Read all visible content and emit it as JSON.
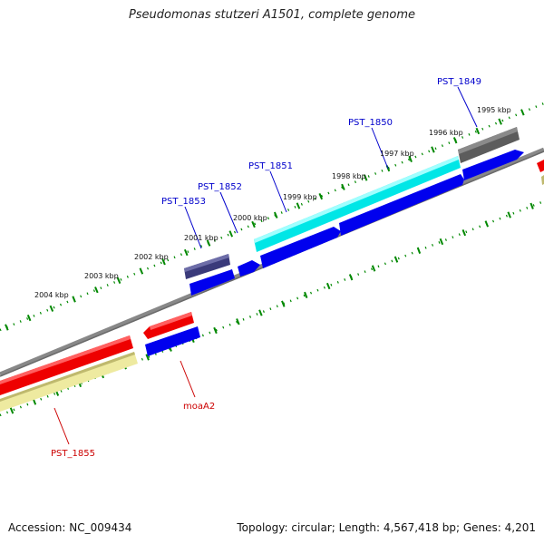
{
  "title": "Pseudomonas stutzeri A1501, complete genome",
  "footer": {
    "accession": "Accession: NC_009434",
    "summary": "Topology: circular; Length: 4,567,418 bp; Genes: 4,201"
  },
  "scale_labels": [
    "1995 kbp",
    "1996 kbp",
    "1997 kbp",
    "1998 kbp",
    "1999 kbp",
    "2000 kbp",
    "2001 kbp",
    "2002 kbp",
    "2003 kbp",
    "2004 kbp"
  ],
  "gene_labels": {
    "pst_1849": "PST_1849",
    "pst_1850": "PST_1850",
    "pst_1851": "PST_1851",
    "pst_1852": "PST_1852",
    "pst_1853": "PST_1853",
    "moaa2": "moaA2",
    "pst_1855": "PST_1855"
  },
  "colors": {
    "forward_label": "#0000cc",
    "reverse_label": "#cc0000",
    "cds_blue": "#0000ee",
    "cds_red": "#ee0000",
    "cyan": "#00eeee",
    "dark_gray": "#555555",
    "slate": "#3a3a7a",
    "khaki": "#eeeaa0",
    "backbone": "#888888",
    "ticks": "#008800"
  }
}
